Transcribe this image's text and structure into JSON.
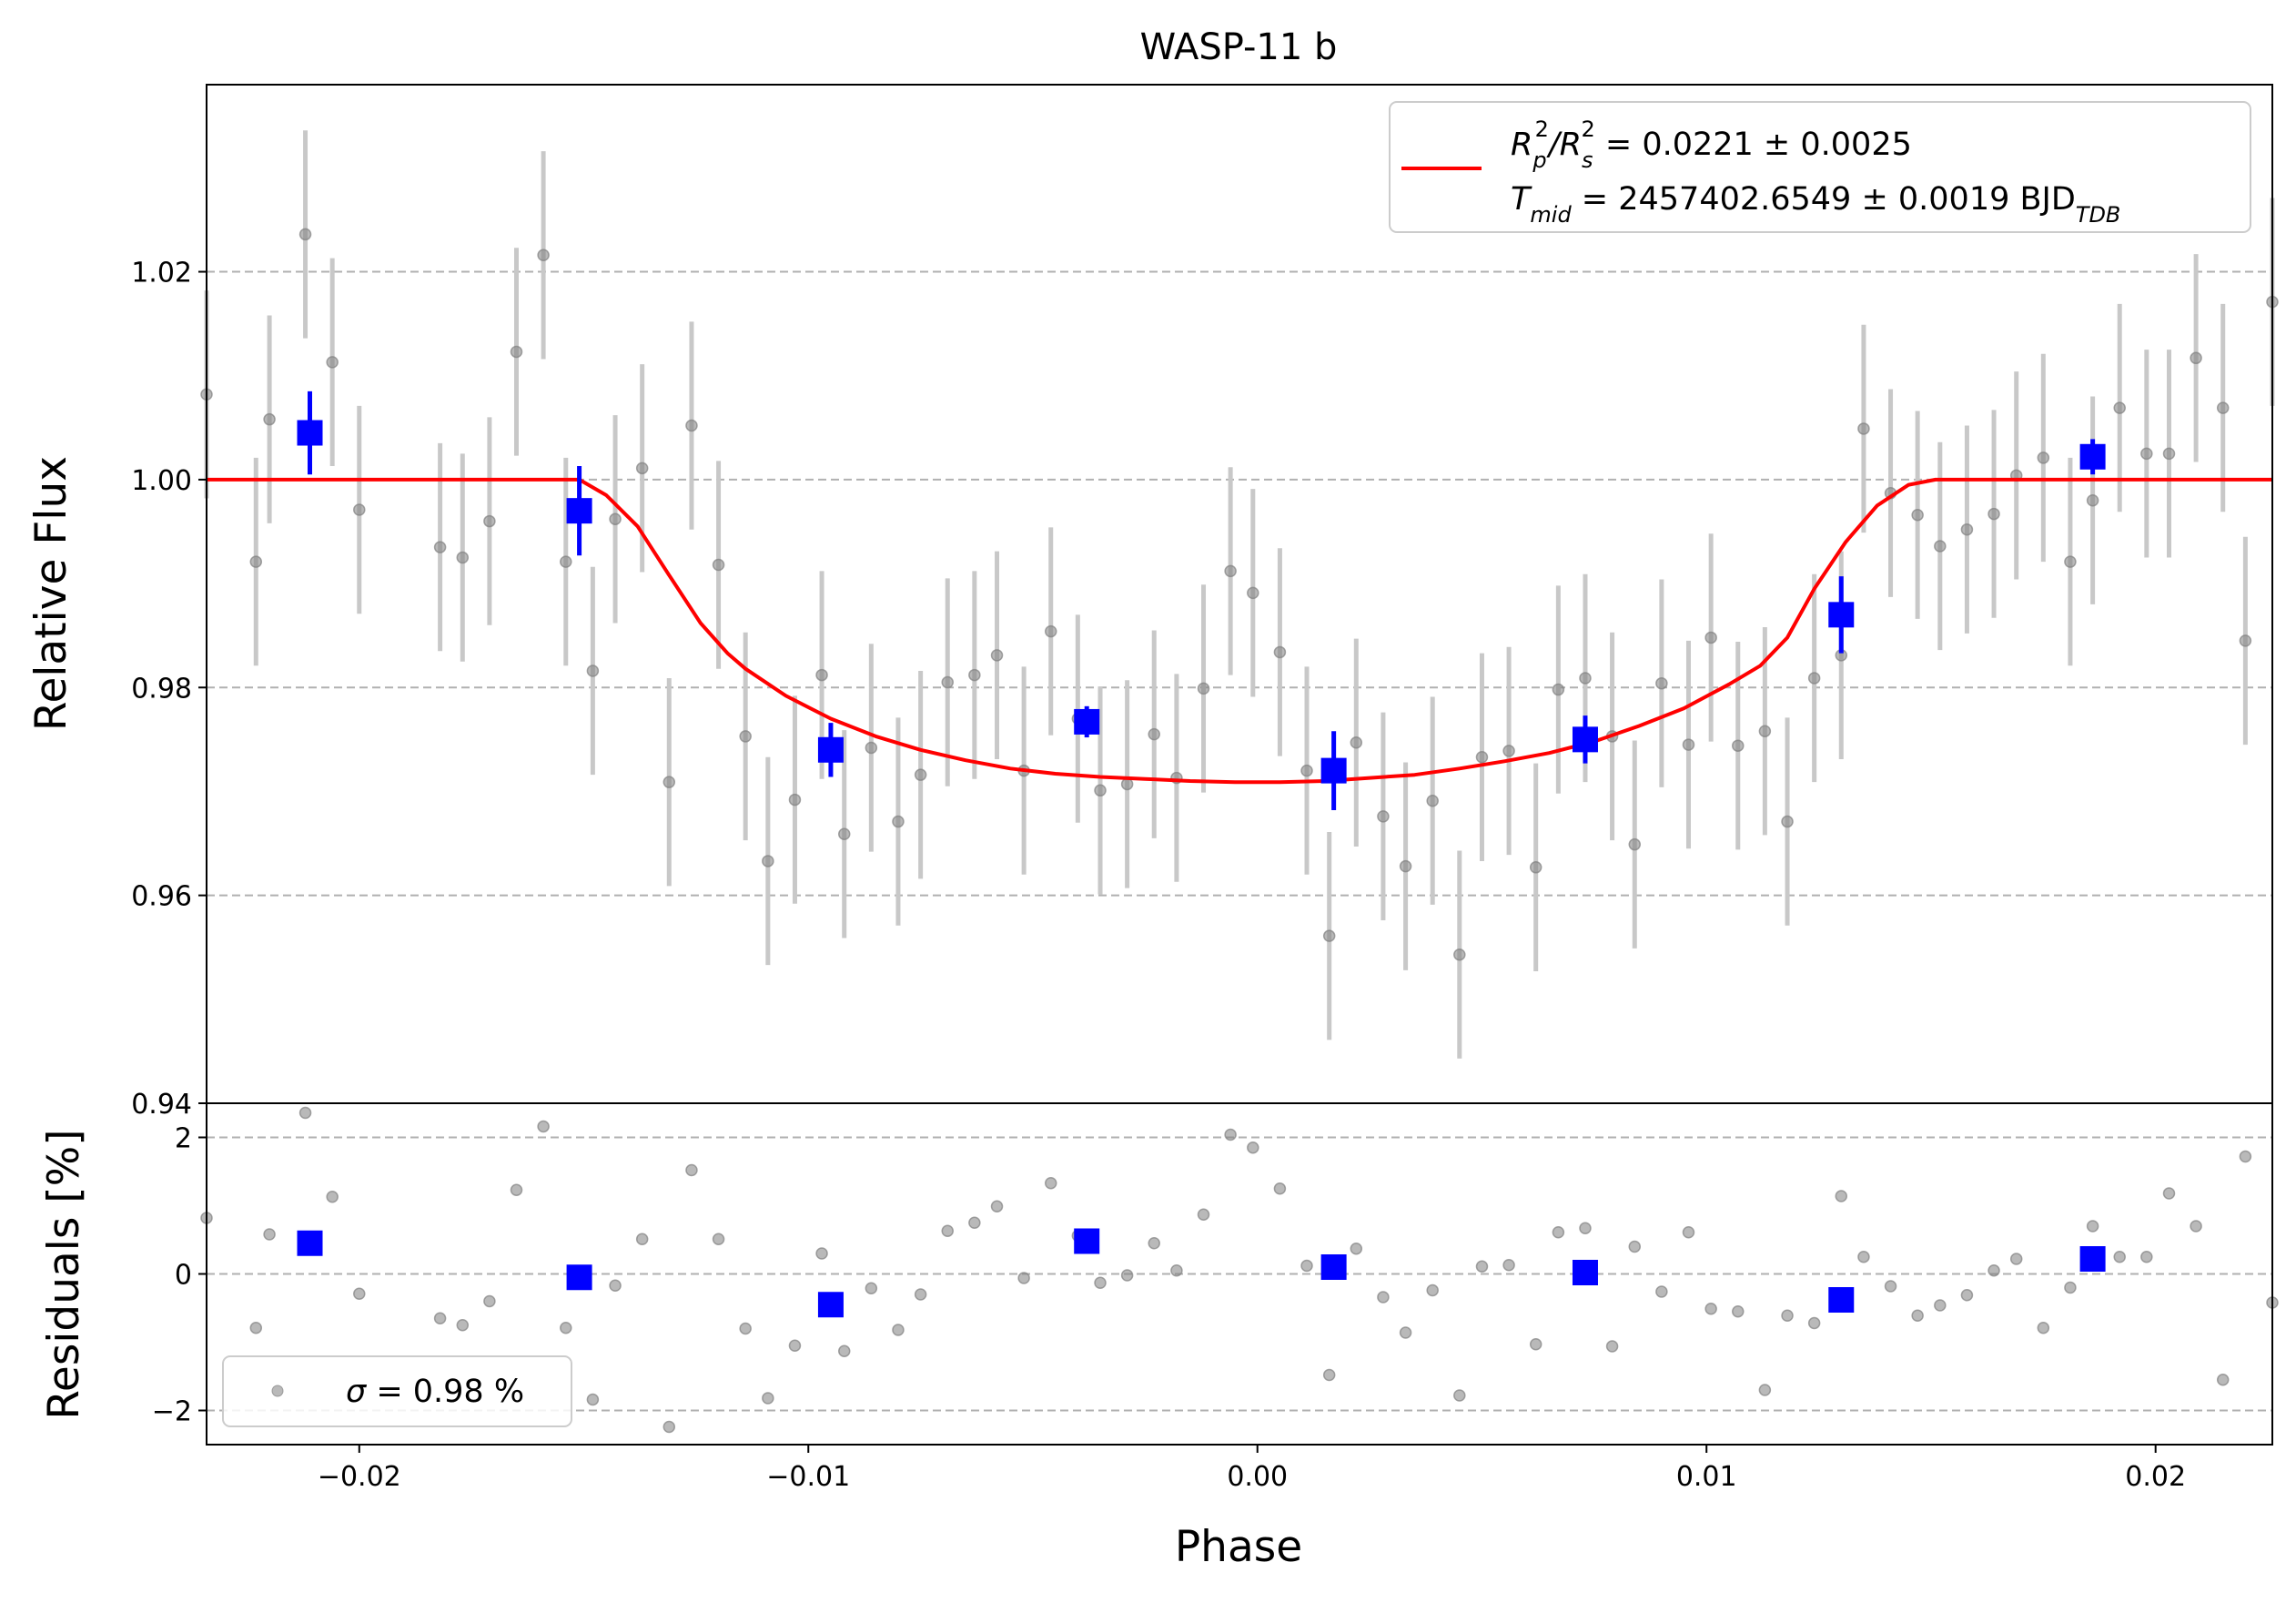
{
  "colors": {
    "model": "#ff0000",
    "binned": "#0000ff",
    "raw_point": "#808080",
    "raw_errorbar": "#c8c8c8",
    "grid": "#b0b0b0"
  },
  "chart_data": [
    {
      "type": "scatter",
      "panel": "flux",
      "title": "WASP-11 b",
      "xlabel": "",
      "ylabel": "Relative Flux",
      "xlim": [
        -0.0234,
        0.0226
      ],
      "ylim": [
        0.94,
        1.038
      ],
      "yticks": [
        "0.94",
        "0.96",
        "0.98",
        "1.00",
        "1.02"
      ],
      "yticks_values": [
        0.94,
        0.96,
        0.98,
        1.0,
        1.02
      ],
      "grid": "horizontal dashed",
      "legend_position": "top-right",
      "legend": {
        "line1_pre": "R",
        "line1_a_sub": "p",
        "line1_a_sup": "2",
        "line1_slash": "/R",
        "line1_b_sub": "s",
        "line1_b_sup": "2",
        "line1_value": " = 0.0221 ± 0.0025",
        "line2_pre": "T",
        "line2_sub": "mid",
        "line2_value": " = 2457402.6549 ± 0.0019 BJD",
        "line2_unit_sub": "TDB"
      },
      "model": {
        "x": [
          -0.0234,
          -0.0151,
          -0.0145,
          -0.0138,
          -0.0131,
          -0.0124,
          -0.0118,
          -0.0114,
          -0.0105,
          -0.0095,
          -0.0085,
          -0.0075,
          -0.0065,
          -0.0055,
          -0.0045,
          -0.0035,
          -0.0025,
          -0.0015,
          -0.0005,
          0.0005,
          0.0015,
          0.0025,
          0.0035,
          0.0045,
          0.0055,
          0.0065,
          0.0075,
          0.0085,
          0.0095,
          0.0105,
          0.0112,
          0.0118,
          0.0124,
          0.0131,
          0.0138,
          0.0145,
          0.0151,
          0.0226
        ],
        "y": [
          1.0,
          1.0,
          0.9985,
          0.9955,
          0.9908,
          0.9862,
          0.9833,
          0.9818,
          0.9792,
          0.977,
          0.9753,
          0.974,
          0.973,
          0.9722,
          0.9717,
          0.9714,
          0.9712,
          0.971,
          0.9709,
          0.9709,
          0.971,
          0.9713,
          0.9716,
          0.9722,
          0.9729,
          0.9737,
          0.9748,
          0.9763,
          0.978,
          0.9803,
          0.9821,
          0.9848,
          0.9895,
          0.994,
          0.9975,
          0.9995,
          1.0,
          1.0
        ]
      },
      "binned": {
        "x": [
          -0.0211,
          -0.0151,
          -0.0095,
          -0.0038,
          0.0017,
          0.0073,
          0.013,
          0.0186
        ],
        "y": [
          1.0045,
          0.997,
          0.974,
          0.9767,
          0.972,
          0.975,
          0.987,
          1.0022
        ],
        "yerr": [
          0.004,
          0.0043,
          0.0026,
          0.0015,
          0.0038,
          0.0023,
          0.0037,
          0.0017
        ]
      },
      "raw": {
        "x": [
          -0.0234,
          -0.0223,
          -0.022,
          -0.0212,
          -0.0206,
          -0.02,
          -0.0182,
          -0.0177,
          -0.0171,
          -0.0165,
          -0.0159,
          -0.0154,
          -0.0148,
          -0.0143,
          -0.0137,
          -0.0131,
          -0.0126,
          -0.012,
          -0.0114,
          -0.0109,
          -0.0103,
          -0.0097,
          -0.0092,
          -0.0086,
          -0.008,
          -0.0075,
          -0.0069,
          -0.0063,
          -0.0058,
          -0.0052,
          -0.0046,
          -0.004,
          -0.0035,
          -0.0029,
          -0.0023,
          -0.0018,
          -0.0012,
          -0.0006,
          -0.0001,
          0.0005,
          0.0011,
          0.0016,
          0.0022,
          0.0028,
          0.0033,
          0.0039,
          0.0045,
          0.005,
          0.0056,
          0.0062,
          0.0067,
          0.0073,
          0.0079,
          0.0084,
          0.009,
          0.0096,
          0.0101,
          0.0107,
          0.0113,
          0.0118,
          0.0124,
          0.013,
          0.0135,
          0.0141,
          0.0147,
          0.0152,
          0.0158,
          0.0164,
          0.0169,
          0.0175,
          0.0181,
          0.0186,
          0.0192,
          0.0198,
          0.0203,
          0.0209,
          0.0215,
          0.022,
          0.0226
        ],
        "y": [
          1.0082,
          0.9921,
          1.0058,
          1.0236,
          1.0113,
          0.9971,
          0.9935,
          0.9925,
          0.996,
          1.0123,
          1.0216,
          0.9921,
          0.9816,
          0.9962,
          1.0011,
          0.9709,
          1.0052,
          0.9918,
          0.9753,
          0.9633,
          0.9692,
          0.9812,
          0.9659,
          0.9742,
          0.9671,
          0.9716,
          0.9805,
          0.9812,
          0.9831,
          0.972,
          0.9854,
          0.977,
          0.9701,
          0.9707,
          0.9755,
          0.9713,
          0.9799,
          0.9912,
          0.9891,
          0.9834,
          0.972,
          0.9561,
          0.9747,
          0.9676,
          0.9628,
          0.9691,
          0.9543,
          0.9733,
          0.9739,
          0.9627,
          0.9798,
          0.9809,
          0.9753,
          0.9649,
          0.9804,
          0.9745,
          0.9848,
          0.9744,
          0.9758,
          0.9671,
          0.9809,
          0.9831,
          1.0049,
          0.9987,
          0.9966,
          0.9936,
          0.9952,
          0.9967,
          1.0004,
          1.0021,
          0.9921,
          0.998,
          1.0069,
          1.0025,
          1.0025,
          1.0117,
          1.0069,
          0.9845,
          1.0171
        ],
        "yerr": [
          0.01,
          0.01,
          0.01,
          0.01,
          0.01,
          0.01,
          0.01,
          0.01,
          0.01,
          0.01,
          0.01,
          0.01,
          0.01,
          0.01,
          0.01,
          0.01,
          0.01,
          0.01,
          0.01,
          0.01,
          0.01,
          0.01,
          0.01,
          0.01,
          0.01,
          0.01,
          0.01,
          0.01,
          0.01,
          0.01,
          0.01,
          0.01,
          0.01,
          0.01,
          0.01,
          0.01,
          0.01,
          0.01,
          0.01,
          0.01,
          0.01,
          0.01,
          0.01,
          0.01,
          0.01,
          0.01,
          0.01,
          0.01,
          0.01,
          0.01,
          0.01,
          0.01,
          0.01,
          0.01,
          0.01,
          0.01,
          0.01,
          0.01,
          0.01,
          0.01,
          0.01,
          0.01,
          0.01,
          0.01,
          0.01,
          0.01,
          0.01,
          0.01,
          0.01,
          0.01,
          0.01,
          0.01,
          0.01,
          0.01,
          0.01,
          0.01,
          0.01,
          0.01,
          0.01
        ]
      }
    },
    {
      "type": "scatter",
      "panel": "residuals",
      "xlabel": "Phase",
      "ylabel": "Residuals [%]",
      "xlim": [
        -0.0234,
        0.0226
      ],
      "ylim": [
        -2.5,
        2.5
      ],
      "xticks": [
        "−0.02",
        "−0.01",
        "0.00",
        "0.01",
        "0.02"
      ],
      "xticks_values": [
        -0.02,
        -0.01,
        0.0,
        0.01,
        0.02
      ],
      "yticks": [
        "−2",
        "0",
        "2"
      ],
      "yticks_values": [
        -2,
        0,
        2
      ],
      "grid": "horizontal dashed",
      "legend_position": "bottom-left",
      "legend": {
        "sigma_symbol": "σ",
        "sigma_text": " = 0.98 %"
      },
      "binned": {
        "x": [
          -0.0211,
          -0.0151,
          -0.0095,
          -0.0038,
          0.0017,
          0.0073,
          0.013,
          0.0186
        ],
        "y": [
          0.45,
          -0.05,
          -0.45,
          0.48,
          0.1,
          0.02,
          -0.38,
          0.22
        ]
      },
      "raw": {
        "x": [
          -0.0234,
          -0.0223,
          -0.022,
          -0.0212,
          -0.0206,
          -0.02,
          -0.0182,
          -0.0177,
          -0.0171,
          -0.0165,
          -0.0159,
          -0.0154,
          -0.0148,
          -0.0143,
          -0.0137,
          -0.0131,
          -0.0126,
          -0.012,
          -0.0114,
          -0.0109,
          -0.0103,
          -0.0097,
          -0.0092,
          -0.0086,
          -0.008,
          -0.0075,
          -0.0069,
          -0.0063,
          -0.0058,
          -0.0052,
          -0.0046,
          -0.004,
          -0.0035,
          -0.0029,
          -0.0023,
          -0.0018,
          -0.0012,
          -0.0006,
          -0.0001,
          0.0005,
          0.0011,
          0.0016,
          0.0022,
          0.0028,
          0.0033,
          0.0039,
          0.0045,
          0.005,
          0.0056,
          0.0062,
          0.0067,
          0.0073,
          0.0079,
          0.0084,
          0.009,
          0.0096,
          0.0101,
          0.0107,
          0.0113,
          0.0118,
          0.0124,
          0.013,
          0.0135,
          0.0141,
          0.0147,
          0.0152,
          0.0158,
          0.0164,
          0.0169,
          0.0175,
          0.0181,
          0.0186,
          0.0192,
          0.0198,
          0.0203,
          0.0209,
          0.0215,
          0.022,
          0.0226
        ],
        "y": [
          0.82,
          -0.79,
          0.58,
          2.36,
          1.13,
          -0.29,
          -0.65,
          -0.75,
          -0.4,
          1.23,
          2.16,
          -0.79,
          -1.84,
          -0.17,
          0.51,
          -2.24,
          1.52,
          0.51,
          -0.8,
          -1.82,
          -1.05,
          0.3,
          -1.13,
          -0.21,
          -0.82,
          -0.3,
          0.63,
          0.75,
          0.99,
          -0.06,
          1.33,
          0.56,
          -0.13,
          -0.02,
          0.45,
          0.05,
          0.87,
          2.04,
          1.85,
          1.25,
          0.12,
          -1.48,
          0.37,
          -0.34,
          -0.86,
          -0.24,
          -1.78,
          0.11,
          0.13,
          -1.03,
          0.61,
          0.67,
          -1.06,
          0.4,
          -0.26,
          0.61,
          -0.51,
          -0.55,
          -1.7,
          -0.61,
          -0.72,
          1.14,
          0.25,
          -0.18,
          -0.61,
          -0.46,
          -0.31,
          0.05,
          0.22,
          -0.79,
          -0.2,
          0.7,
          0.25,
          0.25,
          1.18,
          0.7,
          -1.55,
          1.72,
          -0.42
        ]
      }
    }
  ]
}
